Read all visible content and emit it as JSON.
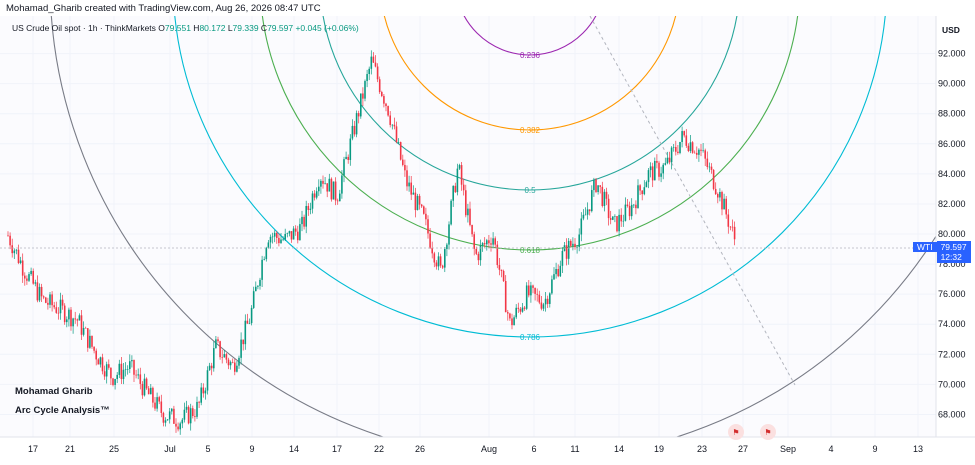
{
  "caption": "Mohamad_Gharib created with TradingView.com, Aug 26, 2026 08:47 UTC",
  "symbol": {
    "name": "US Crude Oil spot · 1h · ThinkMarkets",
    "open_label": "O",
    "open": "79.551",
    "high_label": "H",
    "high": "80.172",
    "low_label": "L",
    "low": "79.339",
    "close_label": "C",
    "close": "79.597",
    "change": "+0.045 (+0.06%)"
  },
  "watermark": {
    "line1": "Mohamad Gharib",
    "line2": "Arc Cycle Analysis™"
  },
  "price_tag": {
    "symbol": "WTI",
    "price": "79.597",
    "countdown": "12:32"
  },
  "colors": {
    "up": "#089981",
    "down": "#f23645",
    "accent": "#2962ff"
  },
  "events": [
    {
      "icon": "us-flag-icon",
      "name": "event-icon-1"
    },
    {
      "icon": "us-flag-icon",
      "name": "event-icon-2"
    }
  ],
  "chart_data": {
    "type": "candlestick",
    "currency": "USD",
    "ylim": [
      66.5,
      94.5
    ],
    "y_ticks": [
      "92.000",
      "90.000",
      "88.000",
      "86.000",
      "84.000",
      "82.000",
      "80.000",
      "78.000",
      "76.000",
      "74.000",
      "72.000",
      "70.000",
      "68.000"
    ],
    "y_tick_values": [
      92,
      90,
      88,
      86,
      84,
      82,
      80,
      78,
      76,
      74,
      72,
      70,
      68
    ],
    "x_ticks": [
      "17",
      "21",
      "25",
      "Jul",
      "5",
      "9",
      "14",
      "17",
      "22",
      "26",
      "Aug",
      "6",
      "11",
      "14",
      "19",
      "23",
      "27",
      "Sep",
      "4",
      "9",
      "13"
    ],
    "fib_arcs": [
      {
        "level": "0.236",
        "color": "#9c27b0"
      },
      {
        "level": "0.382",
        "color": "#ff9800"
      },
      {
        "level": "0.5",
        "color": "#26a69a"
      },
      {
        "level": "0.618",
        "color": "#4caf50"
      },
      {
        "level": "0.786",
        "color": "#00bcd4"
      },
      {
        "level": "1",
        "color": "#787b86"
      }
    ],
    "price_path": [
      [
        "Jun 16",
        79.9
      ],
      [
        "Jun 17",
        77.5
      ],
      [
        "Jun 18",
        75.6
      ],
      [
        "Jun 19",
        75.0
      ],
      [
        "Jun 21",
        74.3
      ],
      [
        "Jun 24",
        72.2
      ],
      [
        "Jun 26",
        70.5
      ],
      [
        "Jun 28",
        71.2
      ],
      [
        "Jul 1",
        69.5
      ],
      [
        "Jul 3",
        68.0
      ],
      [
        "Jul 5",
        67.6
      ],
      [
        "Jul 7",
        68.5
      ],
      [
        "Jul 8",
        72.5
      ],
      [
        "Jul 10",
        71.2
      ],
      [
        "Jul 11",
        74.5
      ],
      [
        "Jul 13",
        80.0
      ],
      [
        "Jul 15",
        79.6
      ],
      [
        "Jul 17",
        80.5
      ],
      [
        "Jul 18",
        84.0
      ],
      [
        "Jul 20",
        82.5
      ],
      [
        "Jul 22",
        87.0
      ],
      [
        "Jul 23",
        91.5
      ],
      [
        "Jul 24",
        88.2
      ],
      [
        "Jul 26",
        83.5
      ],
      [
        "Jul 28",
        81.0
      ],
      [
        "Jul 29",
        77.5
      ],
      [
        "Jul 30",
        84.5
      ],
      [
        "Aug 1",
        78.5
      ],
      [
        "Aug 2",
        80.0
      ],
      [
        "Aug 4",
        74.0
      ],
      [
        "Aug 5",
        76.0
      ],
      [
        "Aug 7",
        75.5
      ],
      [
        "Aug 8",
        78.5
      ],
      [
        "Aug 10",
        80.0
      ],
      [
        "Aug 12",
        83.5
      ],
      [
        "Aug 14",
        80.5
      ],
      [
        "Aug 16",
        81.8
      ],
      [
        "Aug 18",
        84.0
      ],
      [
        "Aug 20",
        84.5
      ],
      [
        "Aug 22",
        86.5
      ],
      [
        "Aug 23",
        85.5
      ],
      [
        "Aug 25",
        83.0
      ],
      [
        "Aug 26",
        79.6
      ]
    ]
  }
}
